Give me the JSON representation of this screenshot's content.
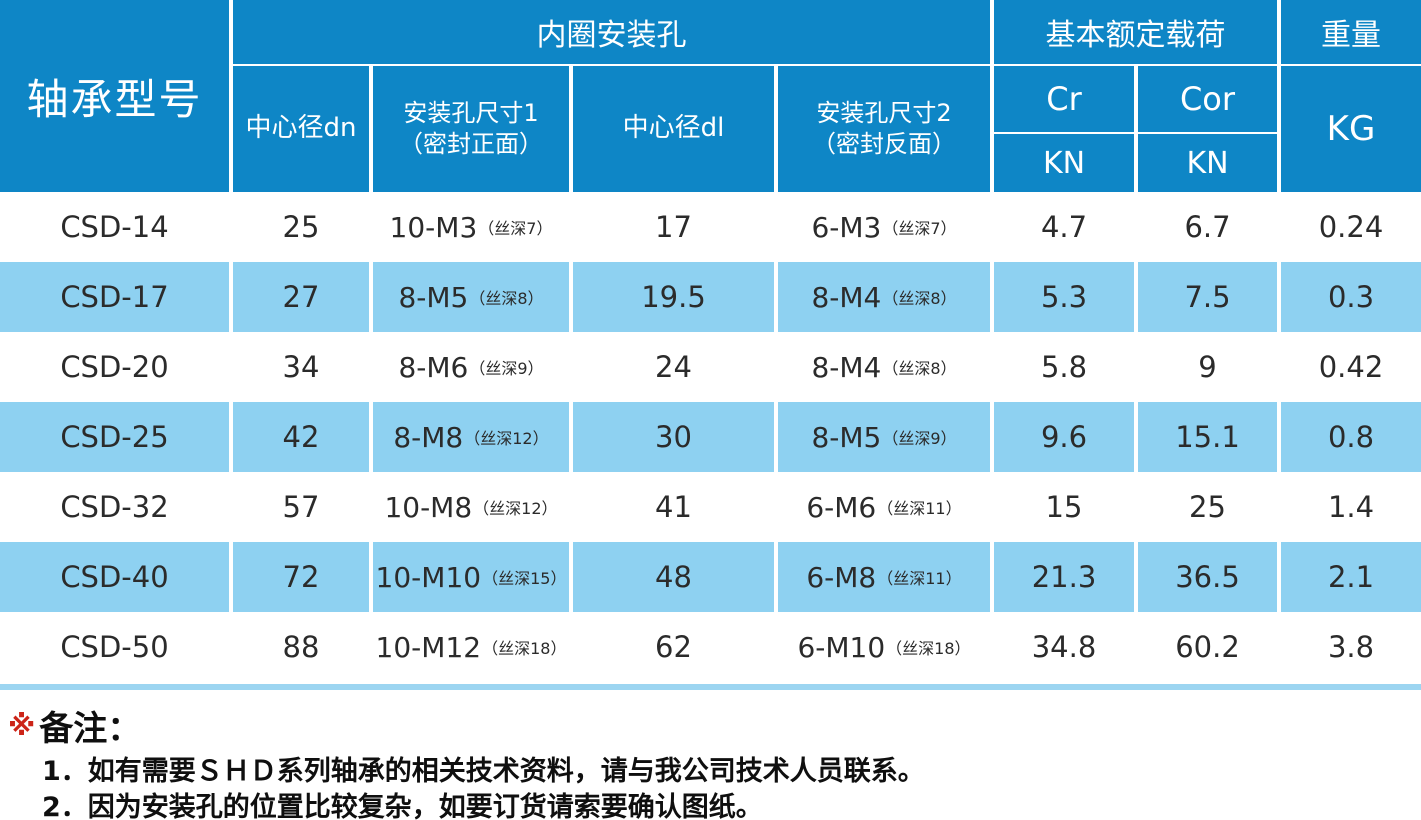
{
  "table": {
    "header": {
      "model": "轴承型号",
      "inner_group": "内圈安装孔",
      "dn": "中心径dn",
      "size1_line1": "安装孔尺寸1",
      "size1_line2": "（密封正面）",
      "dl": "中心径dl",
      "size2_line1": "安装孔尺寸2",
      "size2_line2": "（密封反面）",
      "load_group": "基本额定载荷",
      "cr": "Cr",
      "cor": "Cor",
      "cr_unit": "KN",
      "cor_unit": "KN",
      "weight": "重量",
      "weight_unit": "KG"
    },
    "rows": [
      {
        "model": "CSD-14",
        "dn": "25",
        "size1_main": "10-M3",
        "size1_note": "（丝深7）",
        "dl": "17",
        "size2_main": "6-M3",
        "size2_note": "（丝深7）",
        "cr": "4.7",
        "cor": "6.7",
        "kg": "0.24",
        "striped": false
      },
      {
        "model": "CSD-17",
        "dn": "27",
        "size1_main": "8-M5",
        "size1_note": "（丝深8）",
        "dl": "19.5",
        "size2_main": "8-M4",
        "size2_note": "（丝深8）",
        "cr": "5.3",
        "cor": "7.5",
        "kg": "0.3",
        "striped": true
      },
      {
        "model": "CSD-20",
        "dn": "34",
        "size1_main": "8-M6",
        "size1_note": "（丝深9）",
        "dl": "24",
        "size2_main": "8-M4",
        "size2_note": "（丝深8）",
        "cr": "5.8",
        "cor": "9",
        "kg": "0.42",
        "striped": false
      },
      {
        "model": "CSD-25",
        "dn": "42",
        "size1_main": "8-M8",
        "size1_note": "（丝深12）",
        "dl": "30",
        "size2_main": "8-M5",
        "size2_note": "（丝深9）",
        "cr": "9.6",
        "cor": "15.1",
        "kg": "0.8",
        "striped": true
      },
      {
        "model": "CSD-32",
        "dn": "57",
        "size1_main": "10-M8",
        "size1_note": "（丝深12）",
        "dl": "41",
        "size2_main": "6-M6",
        "size2_note": "（丝深11）",
        "cr": "15",
        "cor": "25",
        "kg": "1.4",
        "striped": false
      },
      {
        "model": "CSD-40",
        "dn": "72",
        "size1_main": "10-M10",
        "size1_note": "（丝深15）",
        "dl": "48",
        "size2_main": "6-M8",
        "size2_note": "（丝深11）",
        "cr": "21.3",
        "cor": "36.5",
        "kg": "2.1",
        "striped": true
      },
      {
        "model": "CSD-50",
        "dn": "88",
        "size1_main": "10-M12",
        "size1_note": "（丝深18）",
        "dl": "62",
        "size2_main": "6-M10",
        "size2_note": "（丝深18）",
        "cr": "34.8",
        "cor": "60.2",
        "kg": "3.8",
        "striped": false
      }
    ]
  },
  "notes": {
    "marker": "※",
    "title": "备注：",
    "items": [
      "1．如有需要ＳＨＤ系列轴承的相关技术资料，请与我公司技术人员联系。",
      "2．因为安装孔的位置比较复杂，如要订货请索要确认图纸。"
    ]
  },
  "colors": {
    "header_blue": "#0e86c6",
    "stripe_blue": "#8ed1f1",
    "divider_blue": "#9cd5f1",
    "note_marker_red": "#cc2418",
    "data_text": "#2b2b2b"
  }
}
